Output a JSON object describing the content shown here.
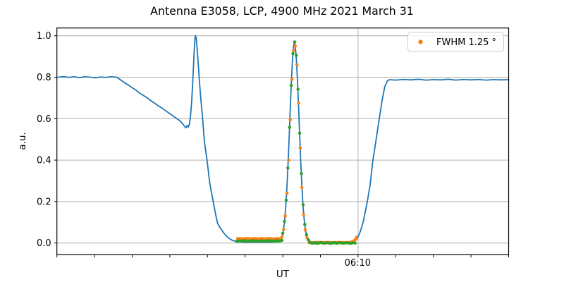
{
  "title": "Antenna E3058, LCP, 4900 MHz 2021 March 31",
  "axes": {
    "xlabel": "UT",
    "ylabel": "a.u.",
    "xtick_label": "06:10",
    "xtick_labeled_t": 40,
    "xtick_minor_t": [
      0,
      5,
      10,
      15,
      20,
      25,
      30,
      35,
      40,
      45,
      50,
      55,
      60
    ],
    "ytick_labels": [
      "0.0",
      "0.2",
      "0.4",
      "0.6",
      "0.8",
      "1.0"
    ],
    "ytick_values": [
      0,
      0.2,
      0.4,
      0.6,
      0.8,
      1.0
    ],
    "grid_color": "#b0b0b0",
    "frame_color": "#000000"
  },
  "legend": {
    "label": "FWHM 1.25 °",
    "marker_color": "#ff7f0e",
    "border_color": "#cccccc",
    "background": "#ffffff"
  },
  "colors": {
    "drift_scan_line": "#1f77b4",
    "fit_dots": "#ff7f0e",
    "sample_dots": "#2ca02c"
  },
  "chart_data": {
    "type": "line",
    "title": "Antenna E3058, LCP, 4900 MHz 2021 March 31",
    "xlabel": "UT",
    "ylabel": "a.u.",
    "x_axis_note": "x values are minutes after 05:30 UT; labeled tick 06:10 at t=40; minor ticks every 5 min; only labeled tick has vertical gridline",
    "xlim": [
      0,
      60
    ],
    "ylim": [
      -0.056,
      1.037
    ],
    "grid": true,
    "legend_position": "upper right",
    "fwhm_deg": 1.25,
    "antenna": "E3058",
    "polarization": "LCP",
    "frequency_mhz": 4900,
    "date": "2021 March 31",
    "series": [
      {
        "name": "drift scan",
        "type": "line",
        "color": "#1f77b4",
        "points": [
          [
            0.15,
            0.8
          ],
          [
            0.9,
            0.803
          ],
          [
            1.6,
            0.799
          ],
          [
            2.3,
            0.802
          ],
          [
            3.0,
            0.798
          ],
          [
            3.7,
            0.802
          ],
          [
            4.4,
            0.8
          ],
          [
            5.1,
            0.797
          ],
          [
            5.8,
            0.801
          ],
          [
            6.5,
            0.799
          ],
          [
            7.2,
            0.802
          ],
          [
            7.96,
            0.8
          ],
          [
            8.5,
            0.786
          ],
          [
            9.0,
            0.773
          ],
          [
            9.5,
            0.762
          ],
          [
            10.0,
            0.749
          ],
          [
            10.5,
            0.738
          ],
          [
            11.0,
            0.723
          ],
          [
            11.5,
            0.712
          ],
          [
            12.0,
            0.7
          ],
          [
            12.5,
            0.686
          ],
          [
            13.0,
            0.674
          ],
          [
            13.5,
            0.661
          ],
          [
            14.0,
            0.65
          ],
          [
            14.5,
            0.637
          ],
          [
            15.0,
            0.624
          ],
          [
            15.5,
            0.611
          ],
          [
            16.0,
            0.598
          ],
          [
            16.4,
            0.588
          ],
          [
            16.8,
            0.57
          ],
          [
            17.0,
            0.561
          ],
          [
            17.15,
            0.556
          ],
          [
            17.3,
            0.567
          ],
          [
            17.45,
            0.559
          ],
          [
            17.6,
            0.574
          ],
          [
            17.75,
            0.615
          ],
          [
            17.9,
            0.682
          ],
          [
            18.05,
            0.78
          ],
          [
            18.2,
            0.9
          ],
          [
            18.3,
            0.968
          ],
          [
            18.38,
            1.001
          ],
          [
            18.5,
            0.99
          ],
          [
            18.62,
            0.94
          ],
          [
            18.78,
            0.862
          ],
          [
            18.95,
            0.77
          ],
          [
            19.15,
            0.682
          ],
          [
            19.35,
            0.6
          ],
          [
            19.6,
            0.487
          ],
          [
            19.94,
            0.4
          ],
          [
            20.3,
            0.29
          ],
          [
            20.76,
            0.2
          ],
          [
            21.1,
            0.135
          ],
          [
            21.35,
            0.094
          ],
          [
            21.7,
            0.073
          ],
          [
            22.2,
            0.046
          ],
          [
            22.75,
            0.025
          ],
          [
            23.3,
            0.013
          ],
          [
            23.9,
            0.007
          ],
          [
            24.8,
            0.004
          ],
          [
            26.0,
            0.004
          ],
          [
            27.2,
            0.004
          ],
          [
            28.4,
            0.004
          ],
          [
            29.4,
            0.006
          ],
          [
            29.8,
            0.022
          ],
          [
            29.95,
            0.038
          ],
          [
            30.1,
            0.066
          ],
          [
            30.25,
            0.111
          ],
          [
            30.4,
            0.176
          ],
          [
            30.55,
            0.266
          ],
          [
            30.7,
            0.38
          ],
          [
            30.85,
            0.513
          ],
          [
            31.0,
            0.653
          ],
          [
            31.15,
            0.785
          ],
          [
            31.3,
            0.891
          ],
          [
            31.45,
            0.954
          ],
          [
            31.55,
            0.966
          ],
          [
            31.65,
            0.954
          ],
          [
            31.8,
            0.891
          ],
          [
            31.95,
            0.785
          ],
          [
            32.1,
            0.653
          ],
          [
            32.25,
            0.513
          ],
          [
            32.4,
            0.38
          ],
          [
            32.55,
            0.266
          ],
          [
            32.7,
            0.176
          ],
          [
            32.85,
            0.111
          ],
          [
            33.0,
            0.066
          ],
          [
            33.15,
            0.038
          ],
          [
            33.3,
            0.022
          ],
          [
            33.45,
            0.013
          ],
          [
            33.8,
            0.004
          ],
          [
            34.6,
            0.002
          ],
          [
            35.6,
            0.002
          ],
          [
            36.6,
            0.002
          ],
          [
            37.6,
            0.002
          ],
          [
            38.6,
            0.003
          ],
          [
            39.2,
            0.004
          ],
          [
            39.6,
            0.01
          ],
          [
            39.9,
            0.022
          ],
          [
            40.3,
            0.055
          ],
          [
            40.7,
            0.105
          ],
          [
            41.2,
            0.194
          ],
          [
            41.6,
            0.28
          ],
          [
            41.95,
            0.394
          ],
          [
            42.4,
            0.5
          ],
          [
            42.8,
            0.596
          ],
          [
            43.2,
            0.69
          ],
          [
            43.55,
            0.755
          ],
          [
            43.9,
            0.783
          ],
          [
            44.2,
            0.788
          ],
          [
            45.0,
            0.786
          ],
          [
            46.0,
            0.789
          ],
          [
            47.0,
            0.787
          ],
          [
            48.0,
            0.79
          ],
          [
            49.0,
            0.786
          ],
          [
            50.0,
            0.788
          ],
          [
            51.0,
            0.787
          ],
          [
            52.0,
            0.79
          ],
          [
            53.0,
            0.786
          ],
          [
            54.0,
            0.789
          ],
          [
            55.0,
            0.787
          ],
          [
            56.0,
            0.789
          ],
          [
            57.0,
            0.786
          ],
          [
            58.0,
            0.788
          ],
          [
            59.0,
            0.787
          ],
          [
            60.0,
            0.788
          ]
        ]
      },
      {
        "name": "gaussian fit",
        "type": "scatter",
        "color": "#ff7f0e",
        "legend": "FWHM 1.25 °",
        "points": [
          [
            24.0,
            0.021
          ],
          [
            24.3,
            0.022
          ],
          [
            24.6,
            0.02
          ],
          [
            24.9,
            0.021
          ],
          [
            25.2,
            0.022
          ],
          [
            25.5,
            0.021
          ],
          [
            25.8,
            0.02
          ],
          [
            26.1,
            0.022
          ],
          [
            26.4,
            0.021
          ],
          [
            26.7,
            0.02
          ],
          [
            27.0,
            0.021
          ],
          [
            27.3,
            0.022
          ],
          [
            27.6,
            0.02
          ],
          [
            27.9,
            0.021
          ],
          [
            28.2,
            0.022
          ],
          [
            28.5,
            0.021
          ],
          [
            28.8,
            0.02
          ],
          [
            29.1,
            0.021
          ],
          [
            29.4,
            0.022
          ],
          [
            29.7,
            0.02
          ],
          [
            29.9,
            0.03
          ],
          [
            30.12,
            0.065
          ],
          [
            30.34,
            0.13
          ],
          [
            30.56,
            0.24
          ],
          [
            30.78,
            0.4
          ],
          [
            31.0,
            0.595
          ],
          [
            31.22,
            0.79
          ],
          [
            31.44,
            0.928
          ],
          [
            31.66,
            0.95
          ],
          [
            31.88,
            0.86
          ],
          [
            32.1,
            0.675
          ],
          [
            32.32,
            0.458
          ],
          [
            32.54,
            0.268
          ],
          [
            32.76,
            0.138
          ],
          [
            32.98,
            0.063
          ],
          [
            33.2,
            0.027
          ],
          [
            33.5,
            0.003
          ],
          [
            33.8,
            0.003
          ],
          [
            34.1,
            0.003
          ],
          [
            34.4,
            0.003
          ],
          [
            34.7,
            0.003
          ],
          [
            35.0,
            0.003
          ],
          [
            35.3,
            0.003
          ],
          [
            35.6,
            0.003
          ],
          [
            35.9,
            0.003
          ],
          [
            36.2,
            0.003
          ],
          [
            36.5,
            0.003
          ],
          [
            36.8,
            0.003
          ],
          [
            37.1,
            0.003
          ],
          [
            37.4,
            0.003
          ],
          [
            37.7,
            0.003
          ],
          [
            38.0,
            0.003
          ],
          [
            38.3,
            0.003
          ],
          [
            38.6,
            0.003
          ],
          [
            38.9,
            0.004
          ],
          [
            39.2,
            0.006
          ],
          [
            39.45,
            0.011
          ],
          [
            39.65,
            0.018
          ],
          [
            39.8,
            0.027
          ]
        ]
      },
      {
        "name": "on-source samples",
        "type": "scatter",
        "color": "#2ca02c",
        "points": [
          [
            23.9,
            0.008
          ],
          [
            24.2,
            0.01
          ],
          [
            24.5,
            0.009
          ],
          [
            24.8,
            0.011
          ],
          [
            25.1,
            0.01
          ],
          [
            25.4,
            0.008
          ],
          [
            25.7,
            0.01
          ],
          [
            26.0,
            0.011
          ],
          [
            26.3,
            0.009
          ],
          [
            26.6,
            0.01
          ],
          [
            26.9,
            0.008
          ],
          [
            27.2,
            0.011
          ],
          [
            27.5,
            0.01
          ],
          [
            27.8,
            0.009
          ],
          [
            28.1,
            0.011
          ],
          [
            28.4,
            0.01
          ],
          [
            28.7,
            0.009
          ],
          [
            29.0,
            0.01
          ],
          [
            29.3,
            0.011
          ],
          [
            29.6,
            0.009
          ],
          [
            29.9,
            0.013
          ],
          [
            30.0,
            0.047
          ],
          [
            30.225,
            0.104
          ],
          [
            30.45,
            0.207
          ],
          [
            30.675,
            0.362
          ],
          [
            30.9,
            0.558
          ],
          [
            31.125,
            0.76
          ],
          [
            31.35,
            0.914
          ],
          [
            31.575,
            0.97
          ],
          [
            31.8,
            0.905
          ],
          [
            32.025,
            0.742
          ],
          [
            32.25,
            0.53
          ],
          [
            32.475,
            0.335
          ],
          [
            32.7,
            0.185
          ],
          [
            32.925,
            0.09
          ],
          [
            33.15,
            0.04
          ],
          [
            33.375,
            0.016
          ],
          [
            33.6,
            0.002
          ],
          [
            33.9,
            -0.001
          ],
          [
            34.2,
            0.001
          ],
          [
            34.5,
            -0.002
          ],
          [
            34.8,
            0.0
          ],
          [
            35.1,
            0.002
          ],
          [
            35.4,
            -0.001
          ],
          [
            35.7,
            0.0
          ],
          [
            36.0,
            0.001
          ],
          [
            36.3,
            -0.002
          ],
          [
            36.6,
            0.0
          ],
          [
            36.9,
            0.001
          ],
          [
            37.2,
            -0.001
          ],
          [
            37.5,
            0.002
          ],
          [
            37.8,
            0.0
          ],
          [
            38.1,
            -0.001
          ],
          [
            38.4,
            0.001
          ],
          [
            38.7,
            0.0
          ],
          [
            39.0,
            -0.002
          ],
          [
            39.3,
            0.001
          ],
          [
            39.6,
            0.0
          ]
        ]
      }
    ]
  }
}
